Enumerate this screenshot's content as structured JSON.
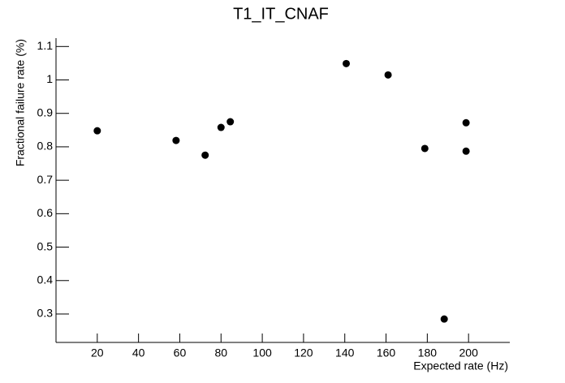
{
  "chart_data": {
    "type": "scatter",
    "title": "T1_IT_CNAF",
    "x_label": "Expected rate (Hz)",
    "y_label": "Fractional failure rate (%)",
    "series": [
      {
        "color": "#000000",
        "x": [
          20,
          58.2,
          72.3,
          80,
          84.5,
          140.7,
          161,
          178.8,
          188.2,
          198.8,
          198.8
        ],
        "values": [
          0.848,
          0.819,
          0.775,
          0.858,
          0.875,
          1.049,
          1.015,
          0.795,
          0.285,
          0.872,
          0.787
        ]
      }
    ],
    "xlim": [
      0,
      220
    ],
    "xticks": [
      20,
      40,
      60,
      80,
      100,
      120,
      140,
      160,
      180,
      200
    ],
    "ylim": [
      0.215,
      1.125
    ],
    "yticks": [
      0.3,
      0.4,
      0.5,
      0.6,
      0.7,
      0.8,
      0.9,
      1,
      1.1
    ]
  }
}
